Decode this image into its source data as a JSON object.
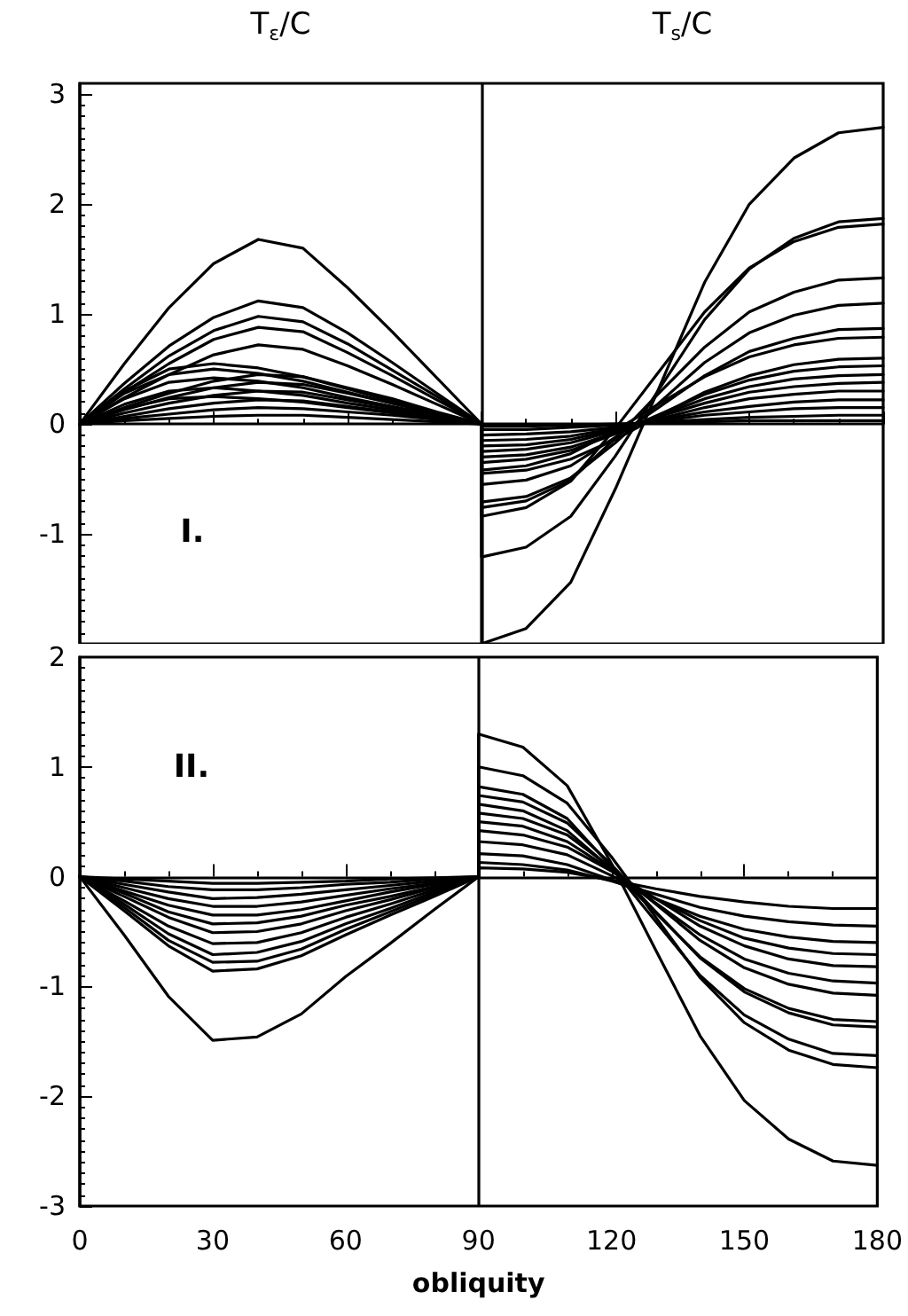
{
  "chart_data": [
    {
      "type": "line",
      "x": [
        0,
        10,
        20,
        30,
        40,
        50,
        60,
        70,
        80,
        90,
        90,
        100,
        110,
        120,
        130,
        140,
        150,
        160,
        170,
        180
      ],
      "xlim": [
        0,
        180
      ],
      "xticks": [
        0,
        30,
        60,
        90,
        120,
        150,
        180
      ],
      "ylim": [
        -2,
        3.1
      ],
      "yticks": [
        -1,
        0,
        1,
        2,
        3
      ],
      "tick_labels": "y",
      "marker": "none",
      "line_style": "solid",
      "annotations": [
        "T$_{ε}$/C",
        "T$_{s}$/C",
        "I."
      ],
      "ref_lines": [
        {
          "axis": "x",
          "value": 90
        }
      ],
      "series": [
        {
          "color": "#000000",
          "values": [
            0,
            0.55,
            1.06,
            1.46,
            1.68,
            1.6,
            1.24,
            0.84,
            0.42,
            0,
            -2,
            -1.86,
            -1.44,
            -0.59,
            0.35,
            1.29,
            2.0,
            2.42,
            2.65,
            2.7
          ]
        },
        {
          "color": "#000000",
          "values": [
            0,
            0.37,
            0.71,
            0.97,
            1.12,
            1.06,
            0.83,
            0.56,
            0.28,
            0,
            -1.21,
            -1.12,
            -0.84,
            -0.29,
            0.33,
            0.95,
            1.41,
            1.69,
            1.84,
            1.87
          ]
        },
        {
          "color": "#000000",
          "values": [
            0,
            0.32,
            0.62,
            0.85,
            0.98,
            0.93,
            0.73,
            0.49,
            0.25,
            0,
            -0.84,
            -0.76,
            -0.52,
            -0.04,
            0.49,
            1.02,
            1.42,
            1.66,
            1.79,
            1.82
          ]
        },
        {
          "color": "#000000",
          "values": [
            0,
            0.29,
            0.55,
            0.77,
            0.88,
            0.84,
            0.65,
            0.44,
            0.22,
            0,
            -0.76,
            -0.7,
            -0.51,
            -0.13,
            0.29,
            0.7,
            1.02,
            1.2,
            1.31,
            1.33
          ]
        },
        {
          "color": "#000000",
          "values": [
            0,
            0.24,
            0.45,
            0.63,
            0.72,
            0.68,
            0.53,
            0.36,
            0.18,
            0,
            -0.71,
            -0.66,
            -0.49,
            -0.17,
            0.2,
            0.56,
            0.83,
            0.99,
            1.08,
            1.1
          ]
        },
        {
          "color": "#000000",
          "values": [
            0,
            0.15,
            0.28,
            0.39,
            0.45,
            0.43,
            0.33,
            0.23,
            0.11,
            0,
            -0.55,
            -0.51,
            -0.38,
            -0.12,
            0.16,
            0.44,
            0.66,
            0.78,
            0.86,
            0.87
          ]
        },
        {
          "color": "#000000",
          "values": [
            0,
            0.13,
            0.24,
            0.33,
            0.38,
            0.36,
            0.28,
            0.19,
            0.1,
            0,
            -0.42,
            -0.38,
            -0.27,
            -0.06,
            0.19,
            0.43,
            0.61,
            0.72,
            0.78,
            0.79
          ]
        },
        {
          "color": "#000000",
          "values": [
            0,
            0.1,
            0.19,
            0.26,
            0.3,
            0.29,
            0.22,
            0.15,
            0.08,
            0,
            -0.35,
            -0.32,
            -0.24,
            -0.09,
            0.09,
            0.27,
            0.4,
            0.48,
            0.52,
            0.53
          ]
        },
        {
          "color": "#000000",
          "values": [
            0,
            0.07,
            0.14,
            0.19,
            0.22,
            0.21,
            0.16,
            0.11,
            0.06,
            0,
            -0.3,
            -0.28,
            -0.21,
            -0.08,
            0.08,
            0.23,
            0.34,
            0.41,
            0.44,
            0.45
          ]
        },
        {
          "color": "#000000",
          "values": [
            0,
            0.05,
            0.09,
            0.13,
            0.15,
            0.14,
            0.11,
            0.08,
            0.04,
            0,
            -0.25,
            -0.23,
            -0.17,
            -0.06,
            0.07,
            0.19,
            0.29,
            0.34,
            0.37,
            0.38
          ]
        },
        {
          "color": "#000000",
          "values": [
            0,
            0.03,
            0.05,
            0.07,
            0.08,
            0.08,
            0.06,
            0.04,
            0.02,
            0,
            -0.2,
            -0.19,
            -0.14,
            -0.05,
            0.05,
            0.15,
            0.23,
            0.27,
            0.3,
            0.3
          ]
        },
        {
          "color": "#000000",
          "values": [
            0,
            0.3,
            0.5,
            0.55,
            0.51,
            0.43,
            0.32,
            0.21,
            0.1,
            0,
            -0.15,
            -0.14,
            -0.11,
            -0.04,
            0.04,
            0.11,
            0.16,
            0.2,
            0.22,
            0.22
          ]
        },
        {
          "color": "#000000",
          "values": [
            0,
            0.28,
            0.45,
            0.5,
            0.46,
            0.39,
            0.29,
            0.19,
            0.09,
            0,
            -0.1,
            -0.09,
            -0.07,
            -0.03,
            0.03,
            0.08,
            0.11,
            0.14,
            0.15,
            0.15
          ]
        },
        {
          "color": "#000000",
          "values": [
            0,
            0.23,
            0.38,
            0.42,
            0.39,
            0.33,
            0.24,
            0.16,
            0.08,
            0,
            -0.05,
            -0.05,
            -0.03,
            -0.01,
            0.02,
            0.04,
            0.06,
            0.07,
            0.08,
            0.08
          ]
        },
        {
          "color": "#000000",
          "values": [
            0,
            0.18,
            0.3,
            0.33,
            0.3,
            0.26,
            0.19,
            0.13,
            0.06,
            0,
            -0.45,
            -0.42,
            -0.32,
            -0.14,
            0.08,
            0.29,
            0.44,
            0.54,
            0.59,
            0.6
          ]
        },
        {
          "color": "#000000",
          "values": [
            0,
            0.14,
            0.23,
            0.25,
            0.23,
            0.2,
            0.15,
            0.1,
            0.05,
            0,
            -0.02,
            -0.02,
            -0.01,
            0,
            0.01,
            0.02,
            0.03,
            0.03,
            0.03,
            0.03
          ]
        }
      ]
    },
    {
      "type": "line",
      "x": [
        0,
        10,
        20,
        30,
        40,
        50,
        60,
        70,
        80,
        90,
        90,
        100,
        110,
        120,
        130,
        140,
        150,
        160,
        170,
        180
      ],
      "xlabel": "obliquity",
      "xlim": [
        0,
        180
      ],
      "xticks": [
        0,
        30,
        60,
        90,
        120,
        150,
        180
      ],
      "ylim": [
        -3,
        2
      ],
      "yticks": [
        -3,
        -2,
        -1,
        0,
        1,
        2
      ],
      "marker": "none",
      "line_style": "solid",
      "annotations": [
        "II."
      ],
      "ref_lines": [
        {
          "axis": "x",
          "value": 90
        }
      ],
      "series": [
        {
          "color": "#000000",
          "values": [
            0,
            -0.53,
            -1.09,
            -1.49,
            -1.46,
            -1.25,
            -0.91,
            -0.61,
            -0.3,
            0,
            1.3,
            1.18,
            0.83,
            0.12,
            -0.67,
            -1.45,
            -2.04,
            -2.39,
            -2.59,
            -2.63
          ]
        },
        {
          "color": "#000000",
          "values": [
            0,
            -0.31,
            -0.63,
            -0.86,
            -0.84,
            -0.72,
            -0.53,
            -0.35,
            -0.18,
            0,
            1.0,
            0.92,
            0.67,
            0.18,
            -0.37,
            -0.92,
            -1.33,
            -1.58,
            -1.71,
            -1.74
          ]
        },
        {
          "color": "#000000",
          "values": [
            0,
            -0.28,
            -0.58,
            -0.78,
            -0.77,
            -0.66,
            -0.48,
            -0.32,
            -0.16,
            0,
            0.82,
            0.75,
            0.53,
            0.09,
            -0.41,
            -0.9,
            -1.26,
            -1.48,
            -1.61,
            -1.63
          ]
        },
        {
          "color": "#000000",
          "values": [
            0,
            -0.25,
            -0.52,
            -0.71,
            -0.69,
            -0.59,
            -0.43,
            -0.29,
            -0.14,
            0,
            0.74,
            0.68,
            0.49,
            0.11,
            -0.32,
            -0.74,
            -1.05,
            -1.24,
            -1.35,
            -1.37
          ]
        },
        {
          "color": "#000000",
          "values": [
            0,
            -0.22,
            -0.45,
            -0.61,
            -0.6,
            -0.51,
            -0.37,
            -0.25,
            -0.12,
            0,
            0.66,
            0.6,
            0.42,
            0.07,
            -0.33,
            -0.73,
            -1.02,
            -1.2,
            -1.3,
            -1.32
          ]
        },
        {
          "color": "#000000",
          "values": [
            0,
            -0.18,
            -0.37,
            -0.51,
            -0.5,
            -0.43,
            -0.31,
            -0.21,
            -0.1,
            0,
            0.58,
            0.53,
            0.38,
            0.08,
            -0.25,
            -0.58,
            -0.83,
            -0.98,
            -1.06,
            -1.08
          ]
        },
        {
          "color": "#000000",
          "values": [
            0,
            -0.15,
            -0.32,
            -0.43,
            -0.42,
            -0.36,
            -0.26,
            -0.18,
            -0.09,
            0,
            0.5,
            0.46,
            0.32,
            0.06,
            -0.24,
            -0.53,
            -0.75,
            -0.88,
            -0.95,
            -0.97
          ]
        },
        {
          "color": "#000000",
          "values": [
            0,
            -0.13,
            -0.26,
            -0.35,
            -0.35,
            -0.3,
            -0.22,
            -0.14,
            -0.07,
            0,
            0.42,
            0.38,
            0.27,
            0.05,
            -0.2,
            -0.45,
            -0.63,
            -0.75,
            -0.81,
            -0.82
          ]
        },
        {
          "color": "#000000",
          "values": [
            0,
            -0.1,
            -0.2,
            -0.27,
            -0.27,
            -0.23,
            -0.17,
            -0.11,
            -0.06,
            0,
            0.32,
            0.29,
            0.2,
            0.01,
            -0.2,
            -0.4,
            -0.56,
            -0.65,
            -0.7,
            -0.71
          ]
        },
        {
          "color": "#000000",
          "values": [
            0,
            -0.07,
            -0.14,
            -0.2,
            -0.19,
            -0.16,
            -0.12,
            -0.08,
            -0.04,
            0,
            0.21,
            0.19,
            0.11,
            -0.03,
            -0.2,
            -0.36,
            -0.48,
            -0.55,
            -0.59,
            -0.6
          ]
        },
        {
          "color": "#000000",
          "values": [
            0,
            -0.04,
            -0.09,
            -0.12,
            -0.12,
            -0.1,
            -0.07,
            -0.05,
            -0.02,
            0,
            0.13,
            0.11,
            0.06,
            -0.04,
            -0.16,
            -0.28,
            -0.36,
            -0.41,
            -0.44,
            -0.45
          ]
        },
        {
          "color": "#000000",
          "values": [
            0,
            -0.02,
            -0.04,
            -0.06,
            -0.06,
            -0.05,
            -0.04,
            -0.02,
            -0.01,
            0,
            0.08,
            0.07,
            0.04,
            -0.03,
            -0.11,
            -0.18,
            -0.23,
            -0.27,
            -0.29,
            -0.29
          ]
        }
      ]
    }
  ]
}
